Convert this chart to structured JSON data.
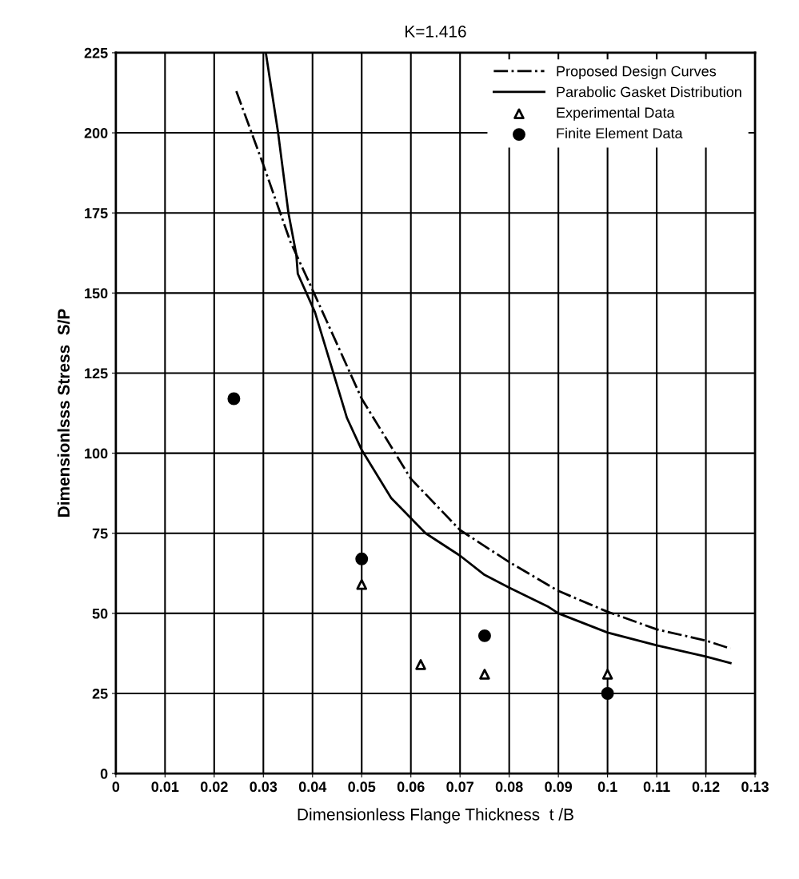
{
  "chart_data": {
    "type": "line",
    "title": "K=1.416",
    "xlabel": "Dimensionless Flange Thickness  t /B",
    "ylabel": "Dimensionlsss Stress  S/P",
    "xlim": [
      0,
      0.13
    ],
    "ylim": [
      0,
      225
    ],
    "xticks": [
      0,
      0.01,
      0.02,
      0.03,
      0.04,
      0.05,
      0.06,
      0.07,
      0.08,
      0.09,
      0.1,
      0.11,
      0.12,
      0.13
    ],
    "yticks": [
      0,
      25,
      50,
      75,
      100,
      125,
      150,
      175,
      200,
      225
    ],
    "grid": true,
    "legend": "top right",
    "series": [
      {
        "name": "Proposed Design Curves",
        "line_style": "dashdot",
        "marker": "none",
        "color": "#000000",
        "x": [
          0.0245,
          0.03,
          0.0355,
          0.04,
          0.05,
          0.06,
          0.07,
          0.08,
          0.09,
          0.1,
          0.11,
          0.12,
          0.125
        ],
        "values": [
          213,
          190,
          166,
          151,
          117,
          92,
          76,
          66,
          57,
          50.5,
          45,
          41.5,
          39
        ]
      },
      {
        "name": "Parabolic Gasket Distribution",
        "line_style": "solid",
        "marker": "none",
        "color": "#000000",
        "x": [
          0.0305,
          0.033,
          0.0351,
          0.0367,
          0.037,
          0.0405,
          0.047,
          0.05,
          0.056,
          0.063,
          0.07,
          0.075,
          0.08,
          0.088,
          0.09,
          0.1,
          0.11,
          0.12,
          0.125
        ],
        "values": [
          225,
          200,
          175,
          162,
          156,
          144,
          111,
          101,
          86,
          75,
          68,
          62,
          58,
          52,
          50,
          44,
          40,
          36.5,
          34.5
        ]
      },
      {
        "name": "Experimental Data",
        "type": "scatter",
        "marker": "triangle",
        "color": "#000000",
        "x": [
          0.05,
          0.062,
          0.075,
          0.1
        ],
        "values": [
          59,
          34,
          31,
          31
        ]
      },
      {
        "name": "Finite Element Data",
        "type": "scatter",
        "marker": "circle",
        "color": "#000000",
        "x": [
          0.024,
          0.05,
          0.075,
          0.1
        ],
        "values": [
          117,
          67,
          43,
          25
        ]
      }
    ]
  }
}
